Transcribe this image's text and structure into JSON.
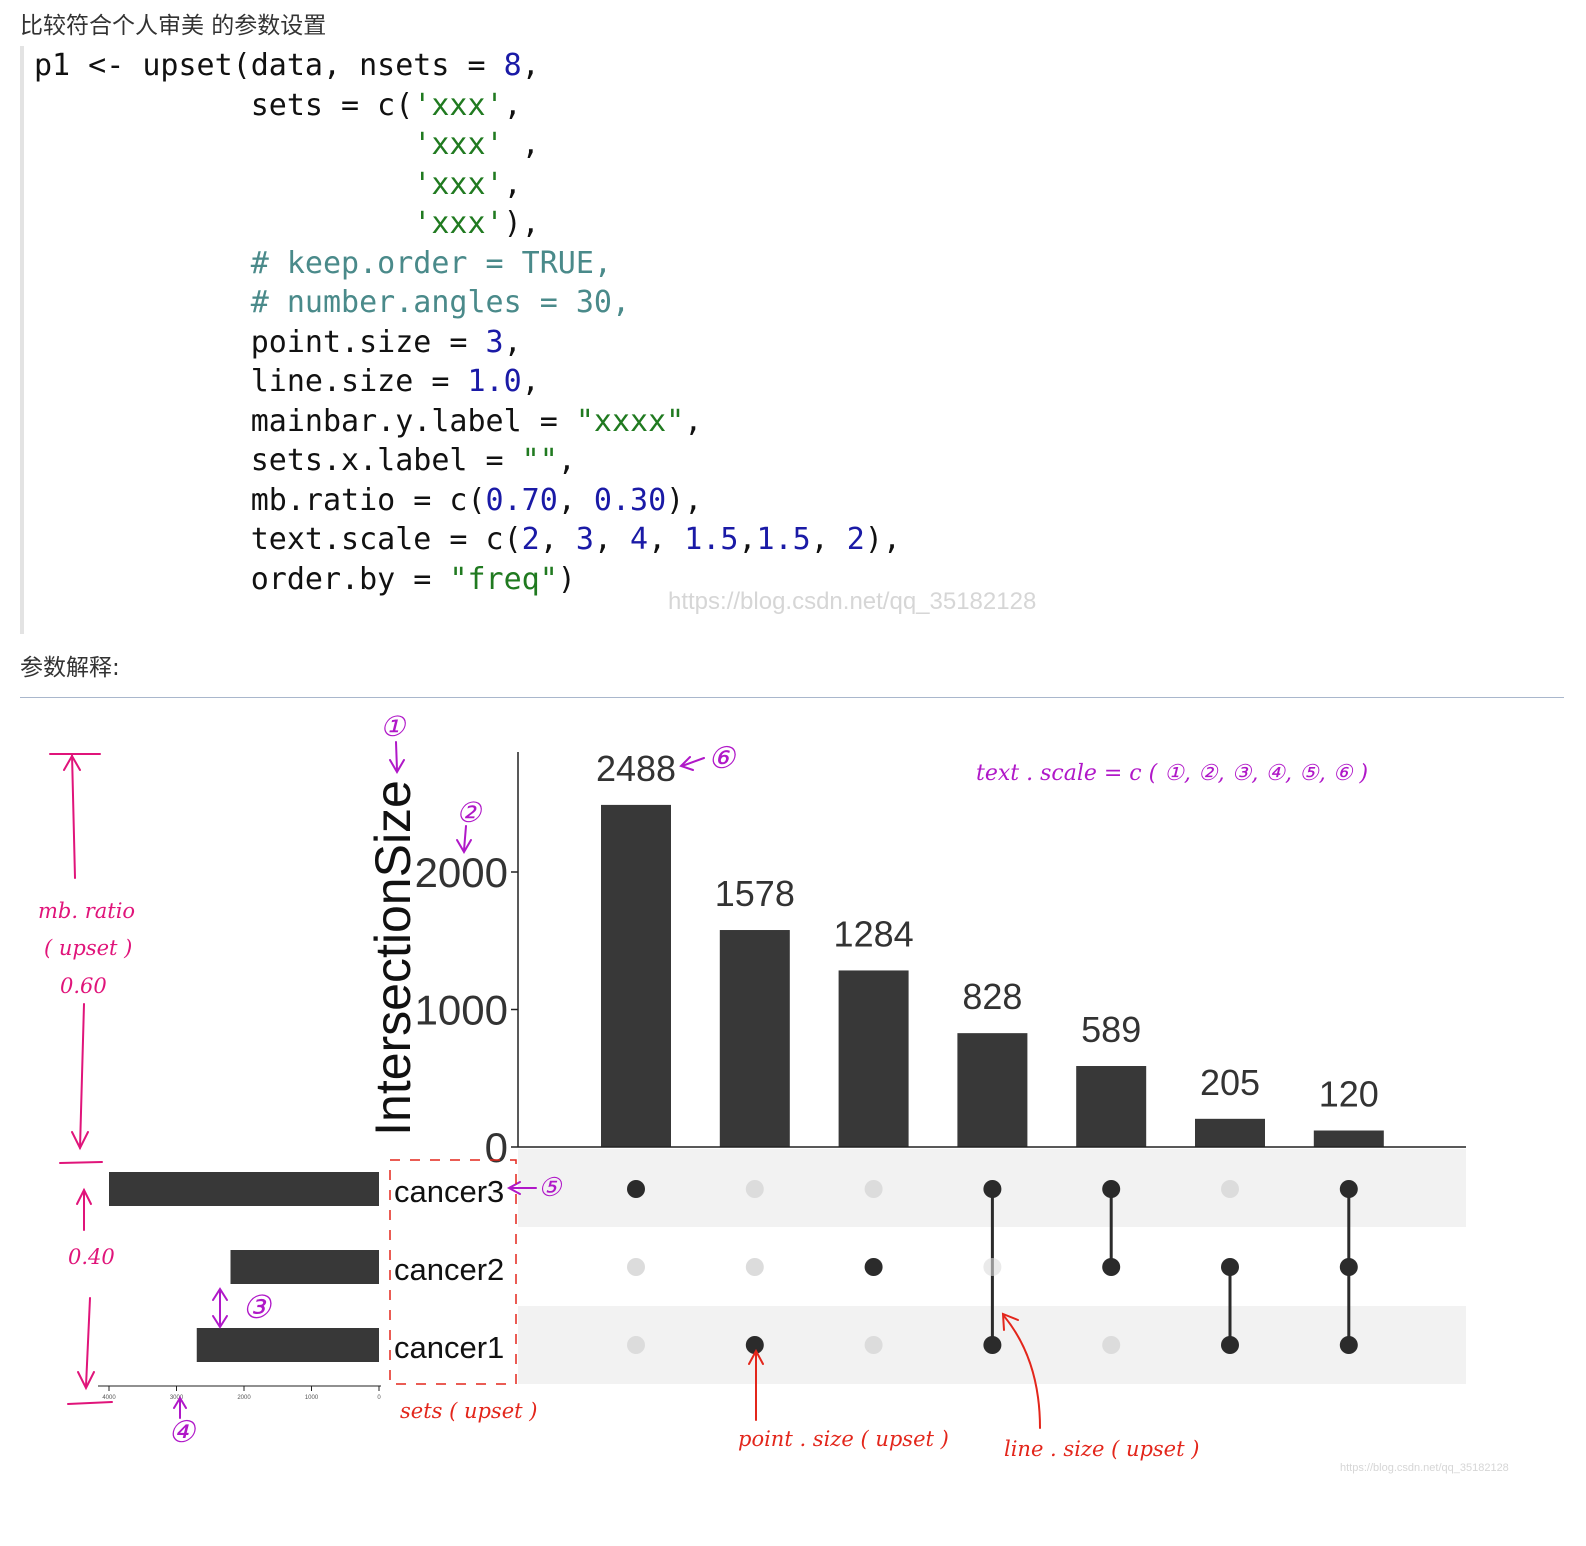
{
  "heading_top": "比较符合个人审美 的参数设置",
  "code_lines": [
    [
      {
        "t": "p1 <- upset(data, nsets = ",
        "c": "plain"
      },
      {
        "t": "8",
        "c": "num"
      },
      {
        "t": ",",
        "c": "plain"
      }
    ],
    [
      {
        "t": "            sets = c(",
        "c": "plain"
      },
      {
        "t": "'xxx'",
        "c": "str"
      },
      {
        "t": ",",
        "c": "plain"
      }
    ],
    [
      {
        "t": "                     ",
        "c": "plain"
      },
      {
        "t": "'xxx'",
        "c": "str"
      },
      {
        "t": " ,",
        "c": "plain"
      }
    ],
    [
      {
        "t": "                     ",
        "c": "plain"
      },
      {
        "t": "'xxx'",
        "c": "str"
      },
      {
        "t": ",",
        "c": "plain"
      }
    ],
    [
      {
        "t": "                     ",
        "c": "plain"
      },
      {
        "t": "'xxx'",
        "c": "str"
      },
      {
        "t": "),",
        "c": "plain"
      }
    ],
    [
      {
        "t": "            ",
        "c": "plain"
      },
      {
        "t": "# keep.order = TRUE,",
        "c": "comment"
      }
    ],
    [
      {
        "t": "            ",
        "c": "plain"
      },
      {
        "t": "# number.angles = 30,",
        "c": "comment"
      }
    ],
    [
      {
        "t": "            point.size = ",
        "c": "plain"
      },
      {
        "t": "3",
        "c": "num"
      },
      {
        "t": ",",
        "c": "plain"
      }
    ],
    [
      {
        "t": "            line.size = ",
        "c": "plain"
      },
      {
        "t": "1.0",
        "c": "num"
      },
      {
        "t": ",",
        "c": "plain"
      }
    ],
    [
      {
        "t": "            mainbar.y.label = ",
        "c": "plain"
      },
      {
        "t": "\"xxxx\"",
        "c": "str"
      },
      {
        "t": ",",
        "c": "plain"
      }
    ],
    [
      {
        "t": "            sets.x.label = ",
        "c": "plain"
      },
      {
        "t": "\"\"",
        "c": "str"
      },
      {
        "t": ",",
        "c": "plain"
      }
    ],
    [
      {
        "t": "            mb.ratio = c(",
        "c": "plain"
      },
      {
        "t": "0.70",
        "c": "num"
      },
      {
        "t": ", ",
        "c": "plain"
      },
      {
        "t": "0.30",
        "c": "num"
      },
      {
        "t": "),",
        "c": "plain"
      }
    ],
    [
      {
        "t": "            text.scale = c(",
        "c": "plain"
      },
      {
        "t": "2",
        "c": "num"
      },
      {
        "t": ", ",
        "c": "plain"
      },
      {
        "t": "3",
        "c": "num"
      },
      {
        "t": ", ",
        "c": "plain"
      },
      {
        "t": "4",
        "c": "num"
      },
      {
        "t": ", ",
        "c": "plain"
      },
      {
        "t": "1.5",
        "c": "num"
      },
      {
        "t": ",",
        "c": "plain"
      },
      {
        "t": "1.5",
        "c": "num"
      },
      {
        "t": ", ",
        "c": "plain"
      },
      {
        "t": "2",
        "c": "num"
      },
      {
        "t": "),",
        "c": "plain"
      }
    ],
    [
      {
        "t": "            order.by = ",
        "c": "plain"
      },
      {
        "t": "\"freq\"",
        "c": "str"
      },
      {
        "t": ")",
        "c": "plain"
      }
    ]
  ],
  "code_colors": {
    "plain": "#111111",
    "num": "#1a1aa6",
    "str": "#207a20",
    "comment": "#4a8a8a"
  },
  "watermark_code": "https://blog.csdn.net/qq_35182128",
  "heading_explain": "参数解释:",
  "watermark_bottom": "https://blog.csdn.net/qq_35182128",
  "chart_data": {
    "type": "bar",
    "ylabel": "IntersectionSize",
    "ylim": [
      0,
      2600
    ],
    "yticks": [
      0,
      1000,
      2000
    ],
    "categories": [
      "cancer3",
      "cancer1",
      "cancer2",
      "cancer3&cancer1",
      "cancer3&cancer2",
      "cancer2&cancer1",
      "cancer3&cancer2&cancer1"
    ],
    "values": [
      2488,
      1578,
      1284,
      828,
      589,
      205,
      120
    ],
    "sets": [
      "cancer3",
      "cancer2",
      "cancer1"
    ],
    "set_sizes": [
      4000,
      2200,
      2700
    ],
    "set_size_ticks": [
      "4000",
      "3000",
      "2000",
      "1000",
      "0"
    ],
    "matrix": [
      [
        1,
        0,
        0,
        1,
        1,
        0,
        1
      ],
      [
        0,
        0,
        1,
        0,
        1,
        1,
        1
      ],
      [
        0,
        1,
        0,
        1,
        0,
        1,
        1
      ]
    ],
    "colors": {
      "bar": "#383838",
      "dot_on": "#2b2b2b",
      "dot_off": "#dcdcdc",
      "stripe": "#f2f2f2",
      "axis": "#222222"
    }
  },
  "annotations": {
    "text_scale": "text . scale = c ( ①, ②, ③, ④, ⑤, ⑥ )",
    "mb_ratio_1": "mb. ratio",
    "mb_ratio_2": "( upset )",
    "mb_ratio_3": "0.60",
    "ratio_040": "0.40",
    "circle_1": "①",
    "circle_2": "②",
    "circle_3": "③",
    "circle_4": "④",
    "circle_5": "⑤",
    "circle_6": "⑥",
    "sets_upset": "sets ( upset )",
    "point_size": "point . size ( upset )",
    "line_size": "line . size ( upset )",
    "colors": {
      "purple": "#b018c8",
      "magenta": "#e0147a",
      "red": "#e3261b"
    }
  }
}
